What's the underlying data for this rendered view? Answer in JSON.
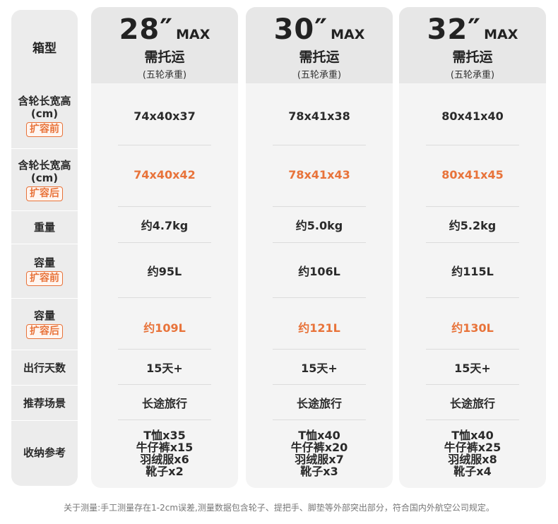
{
  "row_header": "箱型",
  "row_labels": [
    {
      "text": "含轮长宽高",
      "unit": "(cm)",
      "tag": "扩容前"
    },
    {
      "text": "含轮长宽高",
      "unit": "(cm)",
      "tag": "扩容后"
    },
    {
      "text": "重量"
    },
    {
      "text": "容量",
      "tag": "扩容前"
    },
    {
      "text": "容量",
      "tag": "扩容后"
    },
    {
      "text": "出行天数"
    },
    {
      "text": "推荐场景"
    },
    {
      "text": "收纳参考"
    }
  ],
  "columns": [
    {
      "size": "28",
      "quote": "″",
      "unit": "MAX",
      "ship": "需托运",
      "sub": "(五轮承重)",
      "dims_before": "74x40x37",
      "dims_after": "74x40x42",
      "weight": "约4.7kg",
      "cap_before": "约95L",
      "cap_after": "约109L",
      "days": "15天+",
      "scene": "长途旅行",
      "storage": [
        "T恤x35",
        "牛仔裤x15",
        "羽绒服x6",
        "靴子x2"
      ]
    },
    {
      "size": "30",
      "quote": "″",
      "unit": "MAX",
      "ship": "需托运",
      "sub": "(五轮承重)",
      "dims_before": "78x41x38",
      "dims_after": "78x41x43",
      "weight": "约5.0kg",
      "cap_before": "约106L",
      "cap_after": "约121L",
      "days": "15天+",
      "scene": "长途旅行",
      "storage": [
        "T恤x40",
        "牛仔裤x20",
        "羽绒服x7",
        "靴子x3"
      ]
    },
    {
      "size": "32",
      "quote": "″",
      "unit": "MAX",
      "ship": "需托运",
      "sub": "(五轮承重)",
      "dims_before": "80x41x40",
      "dims_after": "80x41x45",
      "weight": "约5.2kg",
      "cap_before": "约115L",
      "cap_after": "约130L",
      "days": "15天+",
      "scene": "长途旅行",
      "storage": [
        "T恤x40",
        "牛仔裤x25",
        "羽绒服x8",
        "靴子x4"
      ]
    }
  ],
  "footnote": "关于测量:手工测量存在1-2cm误差,测量数据包含轮子、提把手、脚垫等外部突出部分，符合国内外航空公司规定。",
  "colors": {
    "accent": "#e8733a",
    "header_bg": "#e7e7e7",
    "panel_bg": "#f4f4f4"
  }
}
